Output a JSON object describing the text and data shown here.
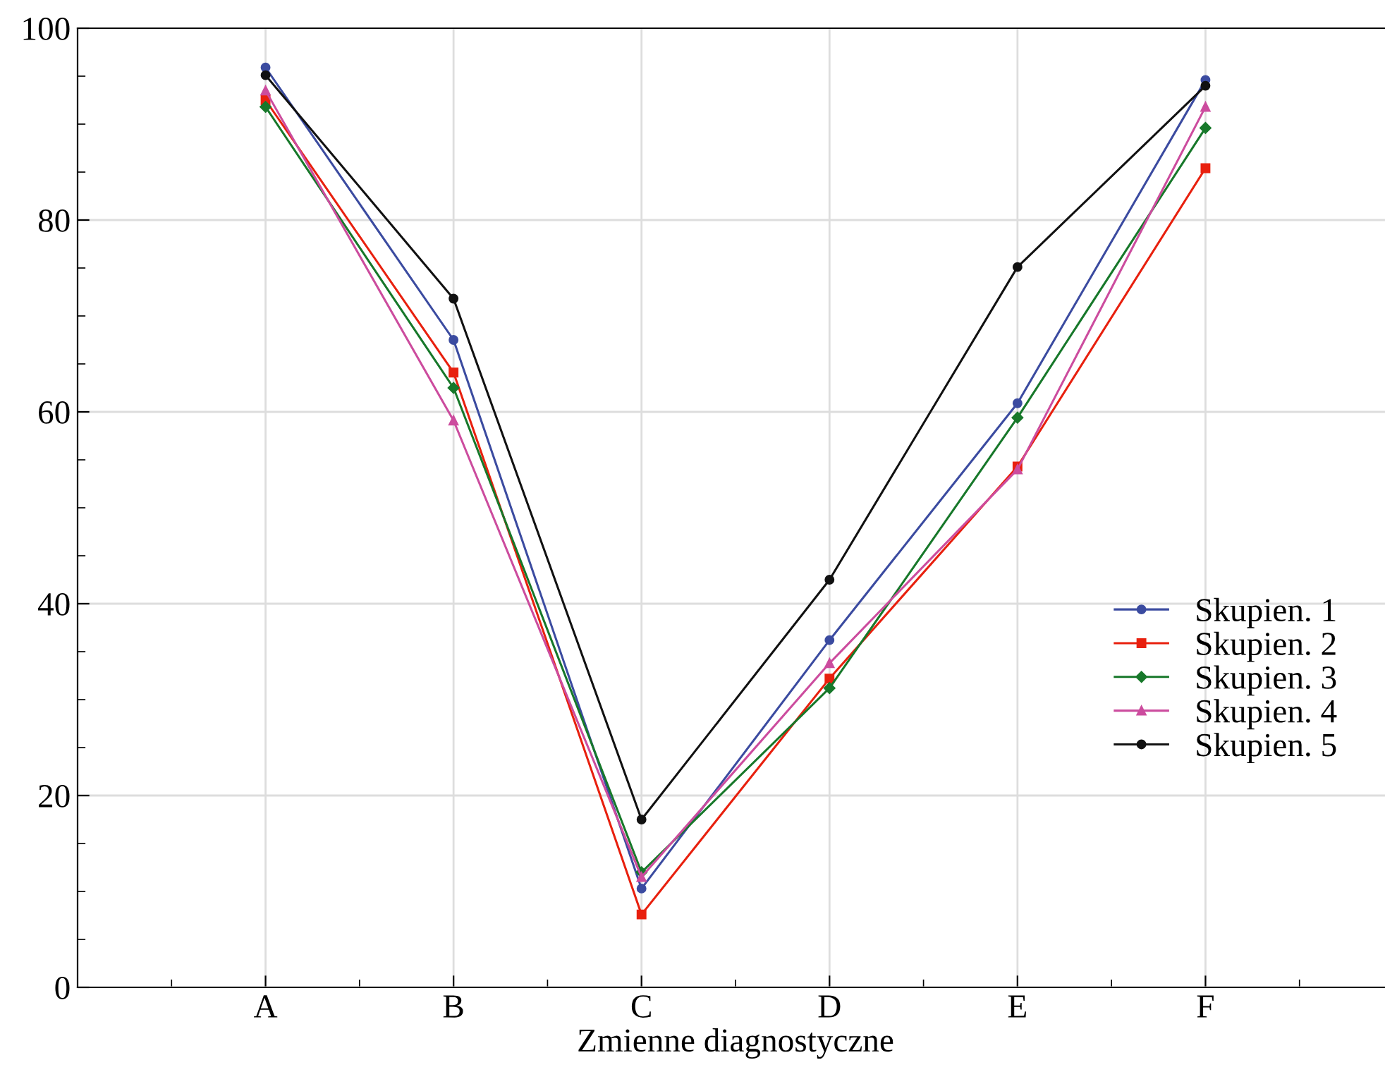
{
  "chart_data": {
    "type": "line",
    "xlabel": "Zmienne diagnostyczne",
    "categories": [
      "A",
      "B",
      "C",
      "D",
      "E",
      "F"
    ],
    "series": [
      {
        "name": "Skupien. 1",
        "color": "#3b4ba0",
        "marker": "circle",
        "values": [
          95.9,
          67.5,
          10.3,
          36.2,
          60.9,
          94.6
        ]
      },
      {
        "name": "Skupien. 2",
        "color": "#e8200e",
        "marker": "square",
        "values": [
          92.5,
          64.1,
          7.6,
          32.2,
          54.3,
          85.4
        ]
      },
      {
        "name": "Skupien. 3",
        "color": "#17782a",
        "marker": "diamond",
        "values": [
          91.8,
          62.5,
          12.0,
          31.2,
          59.4,
          89.6
        ]
      },
      {
        "name": "Skupien. 4",
        "color": "#cc4c9e",
        "marker": "triangle",
        "values": [
          93.5,
          59.1,
          11.5,
          33.8,
          54.0,
          91.8
        ]
      },
      {
        "name": "Skupien. 5",
        "color": "#111111",
        "marker": "circle",
        "values": [
          95.1,
          71.8,
          17.5,
          42.5,
          75.1,
          94.0
        ]
      }
    ],
    "ylim": [
      0,
      100
    ],
    "yticks": [
      0,
      20,
      40,
      60,
      80,
      100
    ],
    "grid": true,
    "legend": "right",
    "line_style": "solid"
  }
}
